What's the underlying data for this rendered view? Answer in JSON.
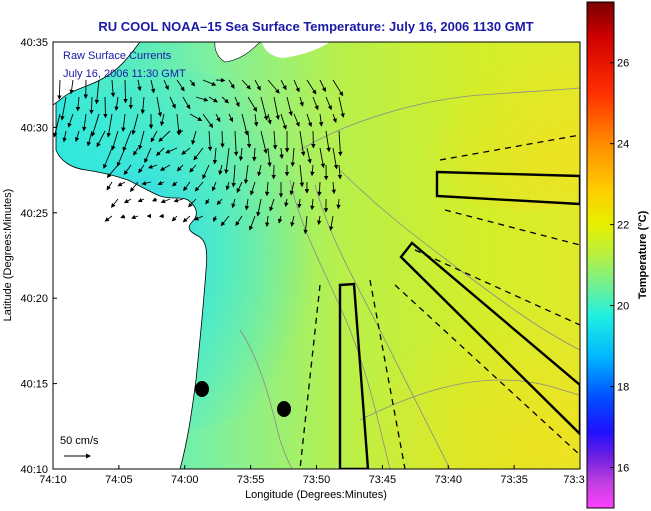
{
  "title": "RU COOL  NOAA–15  Sea Surface Temperature:  July 16, 2006 1130 GMT",
  "legend": {
    "line1": "Raw Surface Currents",
    "line2": "July 16, 2006 11:30 GMT"
  },
  "scale": {
    "label": "50 cm/s"
  },
  "axes": {
    "xlabel": "Longitude (Degrees:Minutes)",
    "ylabel": "Latitude (Degrees:Minutes)",
    "xticks": [
      "74:10",
      "74:05",
      "74:00",
      "73:55",
      "73:50",
      "73:45",
      "73:40",
      "73:35",
      "73:3"
    ],
    "yticks": [
      "40:35",
      "40:30",
      "40:25",
      "40:20",
      "40:15",
      "40:10"
    ]
  },
  "colorbar": {
    "label": "Temperature (°C)",
    "ticks": [
      "26",
      "24",
      "22",
      "20",
      "18",
      "16"
    ],
    "range": [
      15,
      27.5
    ]
  },
  "colors": {
    "land": "#ffffff",
    "title": "#1a1aa6",
    "vectors": "#000000"
  }
}
